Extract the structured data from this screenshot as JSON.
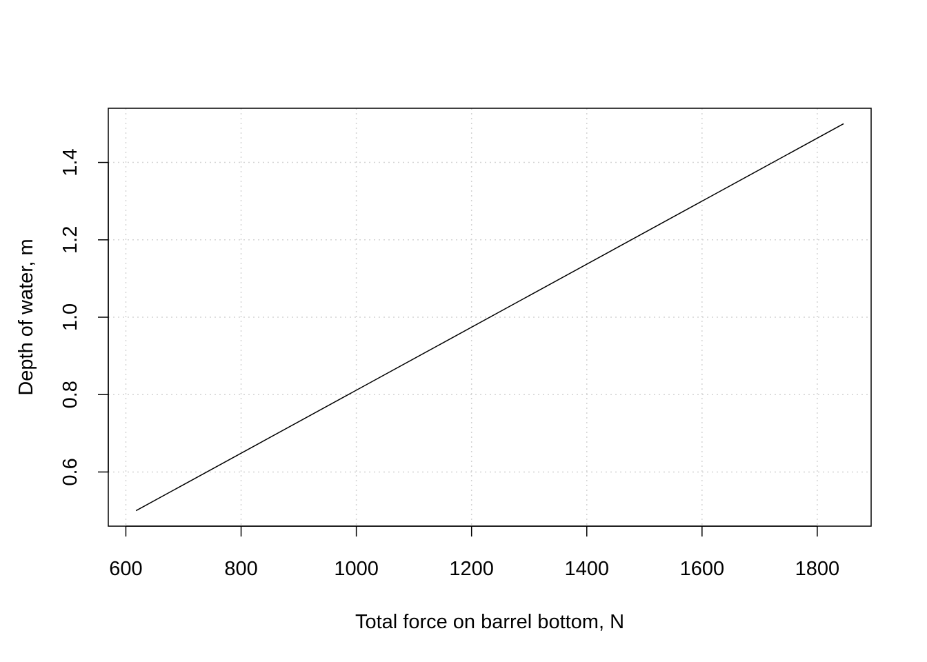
{
  "chart_data": {
    "type": "line",
    "title": "",
    "xlabel": "Total force on barrel bottom, N",
    "ylabel": "Depth of water, m",
    "xlim": [
      569.5,
      1893.5
    ],
    "ylim": [
      0.46,
      1.54
    ],
    "x_ticks": [
      600,
      800,
      1000,
      1200,
      1400,
      1600,
      1800
    ],
    "x_tick_labels": [
      "600",
      "800",
      "1000",
      "1200",
      "1400",
      "1600",
      "1800"
    ],
    "y_ticks": [
      0.6,
      0.8,
      1.0,
      1.2,
      1.4
    ],
    "y_tick_labels": [
      "0.6",
      "0.8",
      "1.0",
      "1.2",
      "1.4"
    ],
    "grid": true,
    "legend": "none",
    "series": [
      {
        "color": "#000000",
        "x": [
          617.6,
          1845.7
        ],
        "y": [
          0.5,
          1.5
        ]
      }
    ]
  }
}
